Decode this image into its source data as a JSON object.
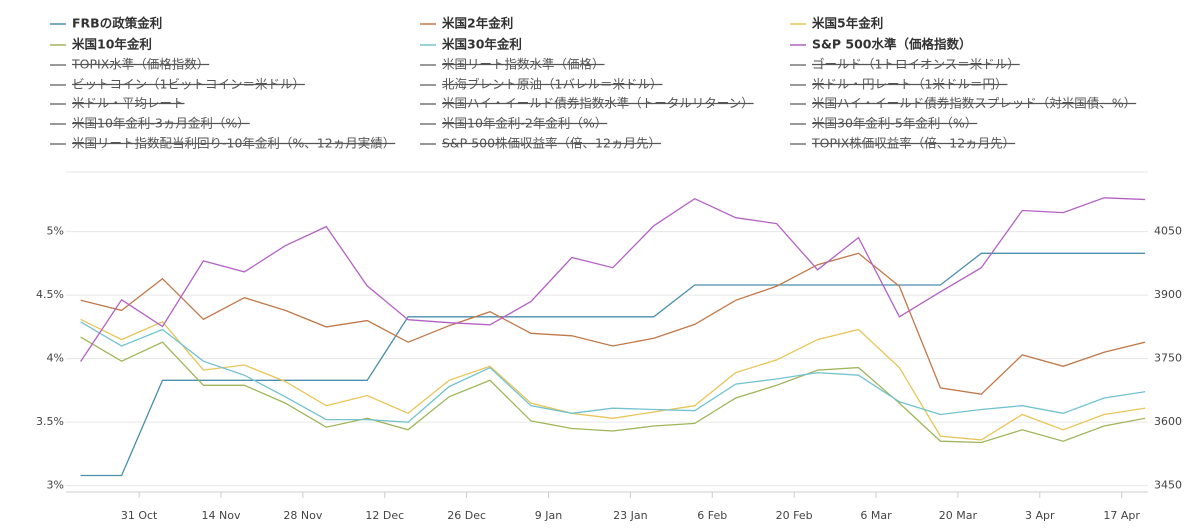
{
  "chart_data": {
    "type": "line",
    "x": [
      0,
      7,
      14,
      21,
      28,
      35,
      42,
      49,
      56,
      63,
      70,
      77,
      84,
      91,
      98,
      105,
      112,
      119,
      126,
      133,
      140,
      147,
      154,
      161,
      168,
      175,
      182
    ],
    "xlim": [
      -2.5,
      182.5
    ],
    "xticks": [
      {
        "value": 10,
        "label": "31 Oct"
      },
      {
        "value": 24,
        "label": "14 Nov"
      },
      {
        "value": 38,
        "label": "28 Nov"
      },
      {
        "value": 52,
        "label": "12 Dec"
      },
      {
        "value": 66,
        "label": "26 Dec"
      },
      {
        "value": 80,
        "label": "9 Jan"
      },
      {
        "value": 94,
        "label": "23 Jan"
      },
      {
        "value": 108,
        "label": "6 Feb"
      },
      {
        "value": 122,
        "label": "20 Feb"
      },
      {
        "value": 136,
        "label": "6 Mar"
      },
      {
        "value": 150,
        "label": "20 Mar"
      },
      {
        "value": 164,
        "label": "3 Apr"
      },
      {
        "value": 178,
        "label": "17 Apr"
      }
    ],
    "ylim": [
      2.95,
      5.47
    ],
    "yticks": [
      {
        "value": 3,
        "label": "3%"
      },
      {
        "value": 3.5,
        "label": "3.5%"
      },
      {
        "value": 4,
        "label": "4%"
      },
      {
        "value": 4.5,
        "label": "4.5%"
      },
      {
        "value": 5,
        "label": "5%"
      }
    ],
    "y2lim": [
      3435,
      4191
    ],
    "y2ticks": [
      3450,
      3600,
      3750,
      3900,
      4050
    ],
    "grid": true,
    "series": [
      {
        "name": "FRBの政策金利",
        "color": "#4a8fad",
        "values": [
          3.08,
          3.08,
          3.83,
          3.83,
          3.83,
          3.83,
          3.83,
          3.83,
          4.33,
          4.33,
          4.33,
          4.33,
          4.33,
          4.33,
          4.33,
          4.58,
          4.58,
          4.58,
          4.58,
          4.58,
          4.58,
          4.58,
          4.83,
          4.83,
          4.83,
          4.83,
          4.83
        ]
      },
      {
        "name": "米国2年金利",
        "color": "#c07848",
        "values": [
          4.46,
          4.38,
          4.63,
          4.31,
          4.48,
          4.38,
          4.25,
          4.3,
          4.13,
          4.26,
          4.37,
          4.2,
          4.18,
          4.1,
          4.16,
          4.27,
          4.46,
          4.57,
          4.74,
          4.83,
          4.57,
          3.77,
          3.72,
          4.03,
          3.94,
          4.05,
          4.13
        ]
      },
      {
        "name": "米国5年金利",
        "color": "#e8c558",
        "values": [
          4.31,
          4.15,
          4.29,
          3.91,
          3.95,
          3.82,
          3.63,
          3.71,
          3.57,
          3.83,
          3.94,
          3.65,
          3.57,
          3.53,
          3.58,
          3.63,
          3.89,
          3.99,
          4.15,
          4.23,
          3.93,
          3.39,
          3.36,
          3.56,
          3.44,
          3.56,
          3.61
        ]
      },
      {
        "name": "米国10年金利",
        "color": "#9fb55a",
        "values": [
          4.17,
          3.98,
          4.13,
          3.79,
          3.79,
          3.65,
          3.46,
          3.53,
          3.44,
          3.7,
          3.83,
          3.51,
          3.45,
          3.43,
          3.47,
          3.49,
          3.69,
          3.79,
          3.91,
          3.93,
          3.65,
          3.35,
          3.34,
          3.44,
          3.35,
          3.47,
          3.53
        ]
      },
      {
        "name": "米国30年金利",
        "color": "#72c2cf",
        "values": [
          4.29,
          4.1,
          4.23,
          3.98,
          3.87,
          3.7,
          3.52,
          3.52,
          3.5,
          3.78,
          3.93,
          3.63,
          3.57,
          3.61,
          3.6,
          3.59,
          3.8,
          3.84,
          3.89,
          3.87,
          3.66,
          3.56,
          3.6,
          3.63,
          3.57,
          3.69,
          3.74
        ]
      },
      {
        "name": "S&P 500水準（価格指数）",
        "color": "#b461c4",
        "axis": "y2",
        "values": [
          3743,
          3889,
          3826,
          3981,
          3955,
          4017,
          4062,
          3922,
          3842,
          3835,
          3830,
          3885,
          3989,
          3965,
          4064,
          4128,
          4083,
          4069,
          3960,
          4036,
          3849,
          3908,
          3965,
          4100,
          4095,
          4130,
          4126
        ]
      }
    ],
    "hidden_series": [
      "TOPIX水準（価格指数）",
      "米国リート指数水準（価格）",
      "ゴールド（1トロイオンス＝米ドル）",
      "ビットコイン（1ビットコイン＝米ドル）",
      "北海ブレント原油（1バレル＝米ドル）",
      "米ドル・円レート（1米ドル＝円）",
      "米ドル・平均レート",
      "米国ハイ・イールド債券指数水準（トータルリターン）",
      "米国ハイ・イールド債券指数スプレッド（対米国債、%）",
      "米国10年金利-3ヵ月金利（%）",
      "米国10年金利-2年金利（%）",
      "米国30年金利-5年金利（%）",
      "米国リート指数配当利回り-10年金利（%、12ヵ月実績）",
      "S&P 500株価収益率（倍、12ヵ月先）",
      "TOPIX株価収益率（倍、12ヵ月先）"
    ]
  }
}
